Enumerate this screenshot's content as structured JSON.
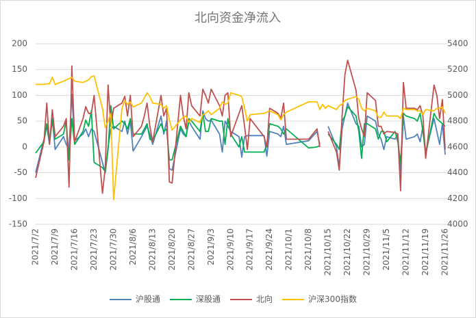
{
  "chart_data": {
    "type": "line",
    "title": "北向资金净流入",
    "x": [
      "2021/7/2",
      "2021/7/5",
      "2021/7/6",
      "2021/7/7",
      "2021/7/8",
      "2021/7/9",
      "2021/7/12",
      "2021/7/13",
      "2021/7/14",
      "2021/7/15",
      "2021/7/16",
      "2021/7/19",
      "2021/7/20",
      "2021/7/21",
      "2021/7/22",
      "2021/7/23",
      "2021/7/26",
      "2021/7/27",
      "2021/7/28",
      "2021/7/29",
      "2021/7/30",
      "2021/8/2",
      "2021/8/3",
      "2021/8/4",
      "2021/8/5",
      "2021/8/6",
      "2021/8/9",
      "2021/8/10",
      "2021/8/11",
      "2021/8/12",
      "2021/8/13",
      "2021/8/16",
      "2021/8/17",
      "2021/8/18",
      "2021/8/19",
      "2021/8/20",
      "2021/8/23",
      "2021/8/24",
      "2021/8/25",
      "2021/8/26",
      "2021/8/27",
      "2021/8/30",
      "2021/8/31",
      "2021/9/1",
      "2021/9/2",
      "2021/9/3",
      "2021/9/6",
      "2021/9/7",
      "2021/9/8",
      "2021/9/9",
      "2021/9/10",
      "2021/9/13",
      "2021/9/14",
      "2021/9/15",
      "2021/9/16",
      "2021/9/17",
      "2021/9/22",
      "2021/9/23",
      "2021/9/24",
      "2021/9/27",
      "2021/9/28",
      "2021/9/29",
      "2021/9/30",
      "2021/10/8",
      "2021/10/11",
      "2021/10/12",
      "2021/10/13",
      "2021/10/14",
      "2021/10/15",
      "2021/10/18",
      "2021/10/19",
      "2021/10/20",
      "2021/10/21",
      "2021/10/22",
      "2021/10/25",
      "2021/10/26",
      "2021/10/27",
      "2021/10/28",
      "2021/10/29",
      "2021/11/1",
      "2021/11/2",
      "2021/11/3",
      "2021/11/4",
      "2021/11/5",
      "2021/11/8",
      "2021/11/9",
      "2021/11/10",
      "2021/11/11",
      "2021/11/12",
      "2021/11/15",
      "2021/11/16",
      "2021/11/17",
      "2021/11/18",
      "2021/11/19",
      "2021/11/22",
      "2021/11/23",
      "2021/11/24",
      "2021/11/25",
      "2021/11/26"
    ],
    "xlim": [
      "2021/7/2",
      "2021/11/26"
    ],
    "xticks": [
      "2021/7/2",
      "2021/7/9",
      "2021/7/16",
      "2021/7/23",
      "2021/7/30",
      "2021/8/6",
      "2021/8/13",
      "2021/8/20",
      "2021/8/27",
      "2021/9/3",
      "2021/9/10",
      "2021/9/17",
      "2021/9/24",
      "2021/10/1",
      "2021/10/8",
      "2021/10/15",
      "2021/10/22",
      "2021/10/29",
      "2021/11/5",
      "2021/11/12",
      "2021/11/19",
      "2021/11/26"
    ],
    "ylim": [
      -150,
      200
    ],
    "yticks": [
      -150,
      -100,
      -50,
      0,
      50,
      100,
      150,
      200
    ],
    "y2lim": [
      4000,
      5400
    ],
    "y2ticks": [
      4000,
      4200,
      4400,
      4600,
      4800,
      5000,
      5200,
      5400
    ],
    "grid": true,
    "legend": "bottom",
    "series": [
      {
        "name": "沪股通",
        "color": "#4f81bd",
        "values": [
          -50,
          15,
          40,
          5,
          55,
          -5,
          20,
          5,
          -5,
          102,
          12,
          25,
          35,
          20,
          35,
          30,
          -30,
          -50,
          0,
          35,
          40,
          30,
          50,
          25,
          50,
          -8,
          20,
          30,
          40,
          25,
          5,
          60,
          25,
          50,
          -42,
          -45,
          35,
          25,
          20,
          50,
          40,
          15,
          70,
          55,
          50,
          52,
          25,
          -10,
          50,
          40,
          30,
          20,
          -20,
          20,
          22,
          22,
          22,
          -18,
          30,
          25,
          20,
          40,
          5,
          12,
          30,
          5,
          null,
          null,
          40,
          0,
          -40,
          35,
          60,
          85,
          45,
          40,
          0,
          5,
          60,
          50,
          25,
          15,
          -5,
          20,
          15,
          25,
          -50,
          60,
          15,
          20,
          25,
          10,
          40,
          -10,
          55,
          30,
          5,
          45,
          -15
        ]
      },
      {
        "name": "深股通",
        "color": "#00b050",
        "values": [
          -12,
          10,
          45,
          10,
          52,
          15,
          25,
          50,
          -25,
          55,
          5,
          30,
          52,
          40,
          70,
          -30,
          -40,
          -48,
          -5,
          80,
          35,
          50,
          45,
          35,
          55,
          25,
          25,
          35,
          45,
          15,
          12,
          45,
          30,
          35,
          -25,
          -25,
          40,
          30,
          20,
          55,
          50,
          30,
          65,
          30,
          30,
          55,
          50,
          50,
          5,
          55,
          25,
          0,
          20,
          -10,
          -10,
          -10,
          -10,
          5,
          45,
          40,
          35,
          25,
          35,
          -2,
          0,
          3,
          null,
          null,
          25,
          5,
          -5,
          50,
          60,
          78,
          60,
          30,
          -22,
          45,
          45,
          35,
          15,
          30,
          30,
          10,
          30,
          10,
          -30,
          65,
          60,
          55,
          50,
          65,
          30,
          -15,
          65,
          55,
          50,
          45,
          40
        ]
      },
      {
        "name": "北向",
        "color": "#c0504d",
        "values": [
          -60,
          10,
          85,
          5,
          72,
          20,
          40,
          55,
          -78,
          157,
          10,
          55,
          78,
          65,
          65,
          100,
          -90,
          -40,
          120,
          40,
          75,
          85,
          98,
          60,
          100,
          20,
          40,
          60,
          85,
          40,
          10,
          100,
          60,
          75,
          -68,
          -70,
          100,
          60,
          35,
          105,
          80,
          60,
          112,
          100,
          85,
          112,
          80,
          60,
          100,
          105,
          20,
          65,
          80,
          40,
          -5,
          55,
          20,
          0,
          75,
          65,
          55,
          85,
          15,
          15,
          35,
          0,
          null,
          null,
          30,
          -10,
          -45,
          60,
          140,
          168,
          110,
          55,
          35,
          20,
          105,
          90,
          40,
          40,
          25,
          30,
          28,
          25,
          -85,
          125,
          75,
          75,
          72,
          80,
          60,
          -22,
          120,
          100,
          55,
          92,
          -5
        ]
      },
      {
        "name": "沪深300指数",
        "color": "#ffc000",
        "axis": "y2",
        "values": [
          5085,
          5085,
          5090,
          5090,
          5140,
          5085,
          5110,
          5120,
          5130,
          5140,
          5110,
          5100,
          5110,
          5120,
          5145,
          5150,
          4900,
          4750,
          4800,
          4860,
          4190,
          4900,
          4960,
          4930,
          4950,
          4910,
          4940,
          4980,
          5020,
          4990,
          4940,
          4930,
          4900,
          4920,
          4810,
          4730,
          4810,
          4830,
          4840,
          4790,
          4820,
          4790,
          4850,
          4860,
          4880,
          4850,
          4900,
          4950,
          4930,
          4940,
          5020,
          5000,
          4990,
          4900,
          4800,
          4850,
          4860,
          4870,
          4880,
          4850,
          4810,
          4850,
          4870,
          4950,
          4950,
          4890,
          4930,
          4900,
          4920,
          4890,
          4920,
          4930,
          4960,
          4970,
          4990,
          4970,
          4900,
          4880,
          4900,
          4880,
          4830,
          4830,
          4870,
          4840,
          4840,
          4840,
          4820,
          4900,
          4890,
          4890,
          4880,
          4880,
          4850,
          4890,
          4880,
          4900,
          4900,
          4910,
          4860
        ]
      }
    ]
  }
}
